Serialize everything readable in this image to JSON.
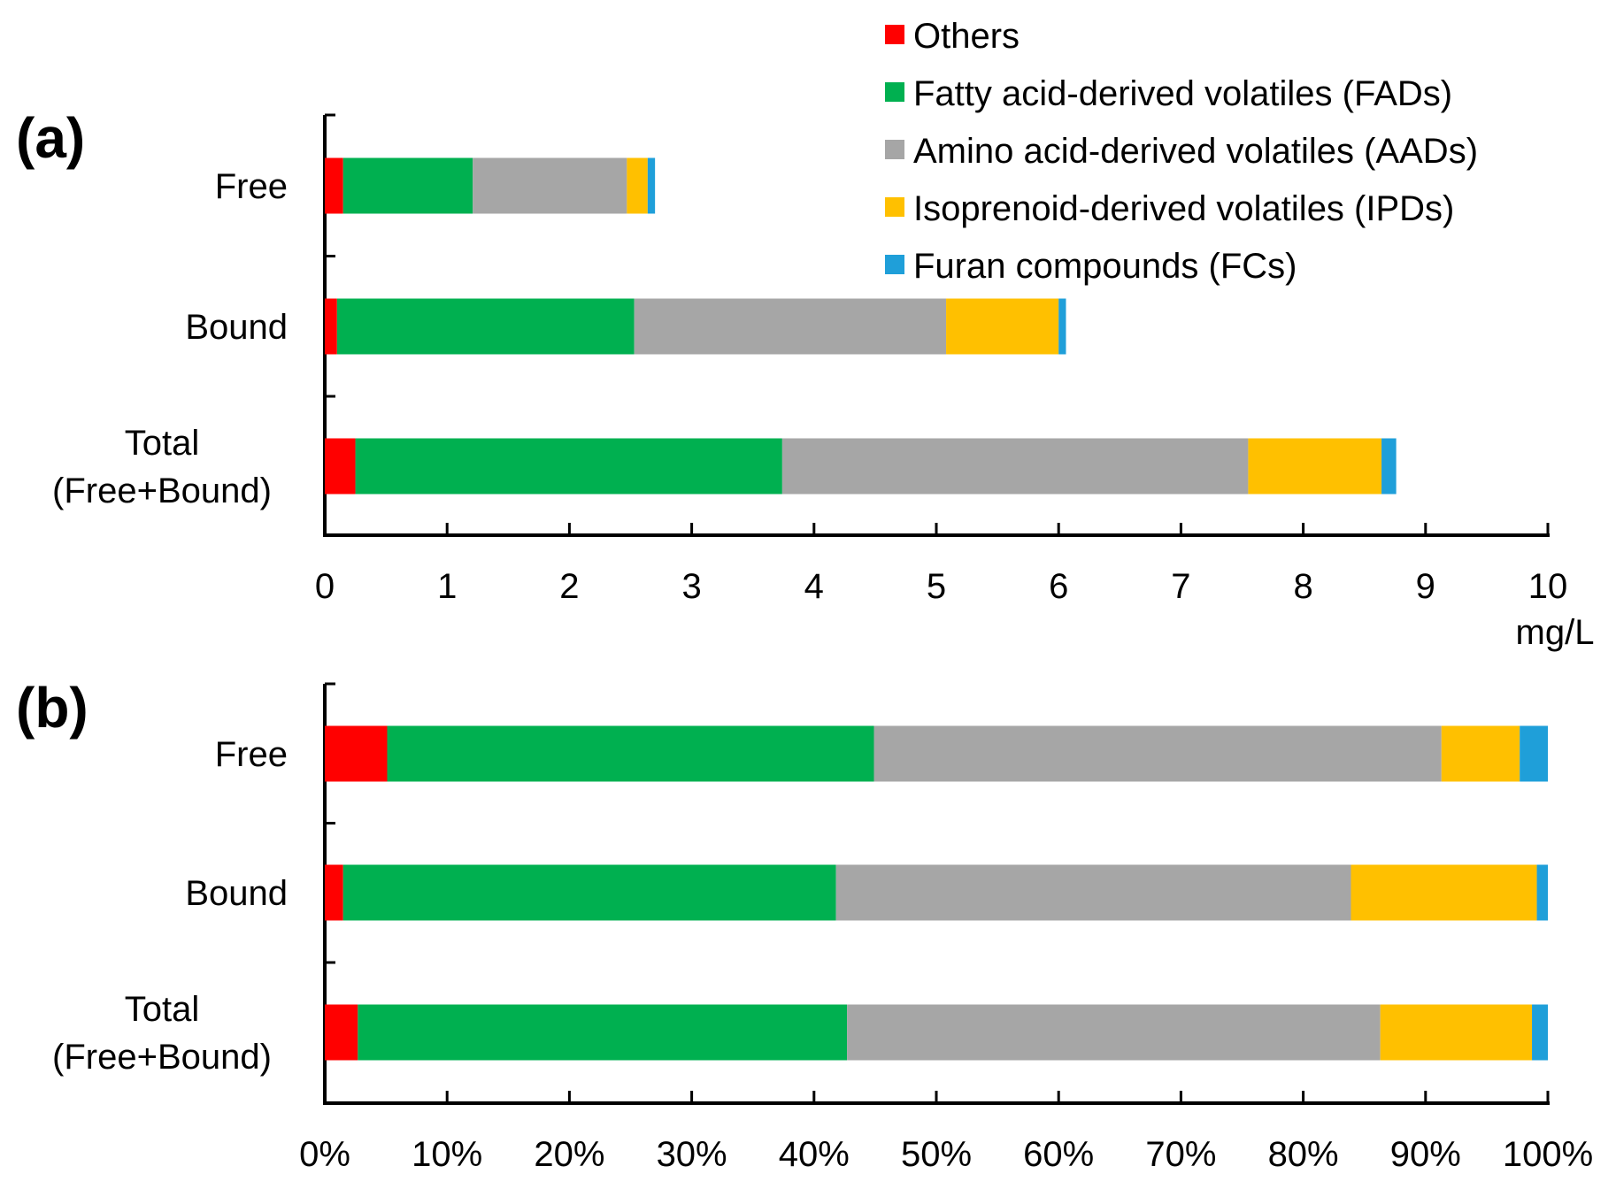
{
  "legend": [
    {
      "label": "Others",
      "color": "#FF0000"
    },
    {
      "label": "Fatty acid-derived volatiles (FADs)",
      "color": "#00B050"
    },
    {
      "label": "Amino acid-derived volatiles (AADs)",
      "color": "#A6A6A6"
    },
    {
      "label": "Isoprenoid-derived volatiles (IPDs)",
      "color": "#FFC000"
    },
    {
      "label": "Furan compounds (FCs)",
      "color": "#1F9FD9"
    }
  ],
  "chart_data": [
    {
      "type": "bar",
      "orientation": "horizontal",
      "stacked": true,
      "panel_label": "(a)",
      "categories": [
        {
          "line1": "Free",
          "line2": ""
        },
        {
          "line1": "Bound",
          "line2": ""
        },
        {
          "line1": "Total",
          "line2": "(Free+Bound)"
        }
      ],
      "series": [
        {
          "name": "Others",
          "values": [
            0.15,
            0.1,
            0.25
          ]
        },
        {
          "name": "Fatty acid-derived volatiles (FADs)",
          "values": [
            1.06,
            2.43,
            3.49
          ]
        },
        {
          "name": "Amino acid-derived volatiles (AADs)",
          "values": [
            1.26,
            2.55,
            3.81
          ]
        },
        {
          "name": "Isoprenoid-derived volatiles (IPDs)",
          "values": [
            0.17,
            0.92,
            1.09
          ]
        },
        {
          "name": "Furan compounds (FCs)",
          "values": [
            0.06,
            0.06,
            0.12
          ]
        }
      ],
      "xlim": [
        0,
        10
      ],
      "tick_labels": [
        "0",
        "1",
        "2",
        "3",
        "4",
        "5",
        "6",
        "7",
        "8",
        "9",
        "10"
      ],
      "xlabel": "mg/L",
      "grid": false
    },
    {
      "type": "bar",
      "orientation": "horizontal",
      "stacked": true,
      "percent": true,
      "panel_label": "(b)",
      "categories": [
        {
          "line1": "Free",
          "line2": ""
        },
        {
          "line1": "Bound",
          "line2": ""
        },
        {
          "line1": "Total",
          "line2": "(Free+Bound)"
        }
      ],
      "series": [
        {
          "name": "Others",
          "values": [
            5.1,
            1.5,
            2.7
          ]
        },
        {
          "name": "Fatty acid-derived volatiles (FADs)",
          "values": [
            39.8,
            40.3,
            40.0
          ]
        },
        {
          "name": "Amino acid-derived volatiles (AADs)",
          "values": [
            46.4,
            42.1,
            43.6
          ]
        },
        {
          "name": "Isoprenoid-derived volatiles (IPDs)",
          "values": [
            6.4,
            15.2,
            12.4
          ]
        },
        {
          "name": "Furan compounds (FCs)",
          "values": [
            2.3,
            0.9,
            1.3
          ]
        }
      ],
      "xlim": [
        0,
        100
      ],
      "tick_labels": [
        "0%",
        "10%",
        "20%",
        "30%",
        "40%",
        "50%",
        "60%",
        "70%",
        "80%",
        "90%",
        "100%"
      ],
      "xlabel": "",
      "grid": false
    }
  ]
}
